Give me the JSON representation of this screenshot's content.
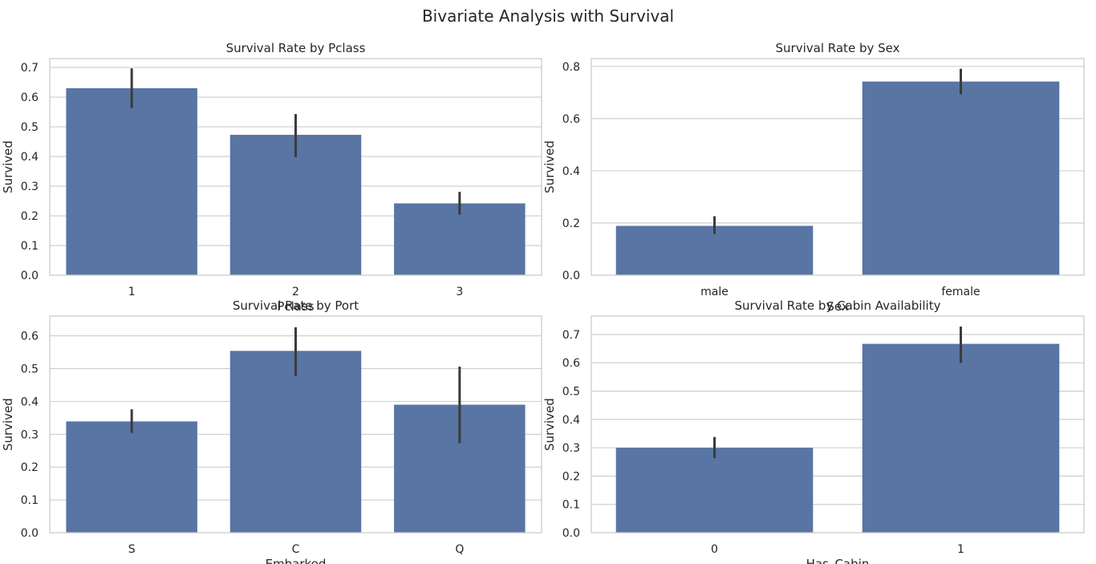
{
  "suptitle": "Bivariate Analysis with Survival",
  "style": {
    "bar_color": "#5875a4",
    "err_color": "#3b3b3b",
    "grid_color": "#cccccc",
    "spine_color": "#cccccc"
  },
  "chart_data": [
    {
      "type": "bar",
      "title": "Survival Rate by Pclass",
      "xlabel": "Pclass",
      "ylabel": "Survived",
      "categories": [
        "1",
        "2",
        "3"
      ],
      "values": [
        0.63,
        0.473,
        0.242
      ],
      "err_low": [
        0.563,
        0.398,
        0.204
      ],
      "err_high": [
        0.697,
        0.543,
        0.281
      ],
      "ylim": [
        0,
        0.73
      ],
      "yticks": [
        0.0,
        0.1,
        0.2,
        0.3,
        0.4,
        0.5,
        0.6,
        0.7
      ],
      "ytick_labels": [
        "0.0",
        "0.1",
        "0.2",
        "0.3",
        "0.4",
        "0.5",
        "0.6",
        "0.7"
      ],
      "grid": true
    },
    {
      "type": "bar",
      "title": "Survival Rate by Sex",
      "xlabel": "Sex",
      "ylabel": "Survived",
      "categories": [
        "male",
        "female"
      ],
      "values": [
        0.189,
        0.742
      ],
      "err_low": [
        0.158,
        0.693
      ],
      "err_high": [
        0.226,
        0.791
      ],
      "ylim": [
        0,
        0.83
      ],
      "yticks": [
        0.0,
        0.2,
        0.4,
        0.6,
        0.8
      ],
      "ytick_labels": [
        "0.0",
        "0.2",
        "0.4",
        "0.6",
        "0.8"
      ],
      "grid": true
    },
    {
      "type": "bar",
      "title": "Survival Rate by Port",
      "xlabel": "Embarked",
      "ylabel": "Survived",
      "categories": [
        "S",
        "C",
        "Q"
      ],
      "values": [
        0.339,
        0.554,
        0.39
      ],
      "err_low": [
        0.304,
        0.477,
        0.273
      ],
      "err_high": [
        0.376,
        0.626,
        0.506
      ],
      "ylim": [
        0,
        0.66
      ],
      "yticks": [
        0.0,
        0.1,
        0.2,
        0.3,
        0.4,
        0.5,
        0.6
      ],
      "ytick_labels": [
        "0.0",
        "0.1",
        "0.2",
        "0.3",
        "0.4",
        "0.5",
        "0.6"
      ],
      "grid": true
    },
    {
      "type": "bar",
      "title": "Survival Rate by Cabin Availability",
      "xlabel": "Has_Cabin",
      "ylabel": "Survived",
      "categories": [
        "0",
        "1"
      ],
      "values": [
        0.3,
        0.667
      ],
      "err_low": [
        0.263,
        0.6
      ],
      "err_high": [
        0.338,
        0.728
      ],
      "ylim": [
        0,
        0.765
      ],
      "yticks": [
        0.0,
        0.1,
        0.2,
        0.3,
        0.4,
        0.5,
        0.6,
        0.7
      ],
      "ytick_labels": [
        "0.0",
        "0.1",
        "0.2",
        "0.3",
        "0.4",
        "0.5",
        "0.6",
        "0.7"
      ],
      "grid": true
    }
  ]
}
